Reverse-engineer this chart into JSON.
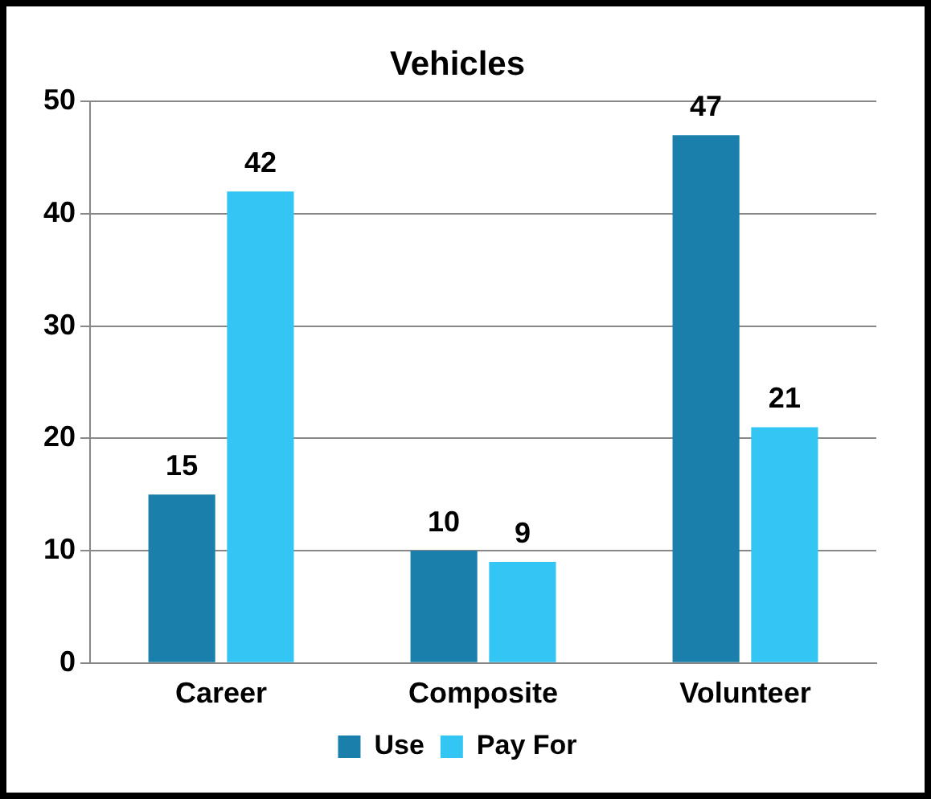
{
  "chart_data": {
    "type": "bar",
    "title": "Vehicles",
    "categories": [
      "Career",
      "Composite",
      "Volunteer"
    ],
    "series": [
      {
        "name": "Use",
        "color": "#1a7fab",
        "values": [
          15,
          10,
          47
        ]
      },
      {
        "name": "Pay For",
        "color": "#33c5f3",
        "values": [
          42,
          9,
          21
        ]
      }
    ],
    "ylim": [
      0,
      50
    ],
    "yticks": [
      0,
      10,
      20,
      30,
      40,
      50
    ],
    "grid": "y",
    "legend": "bottom",
    "data_labels": true
  }
}
